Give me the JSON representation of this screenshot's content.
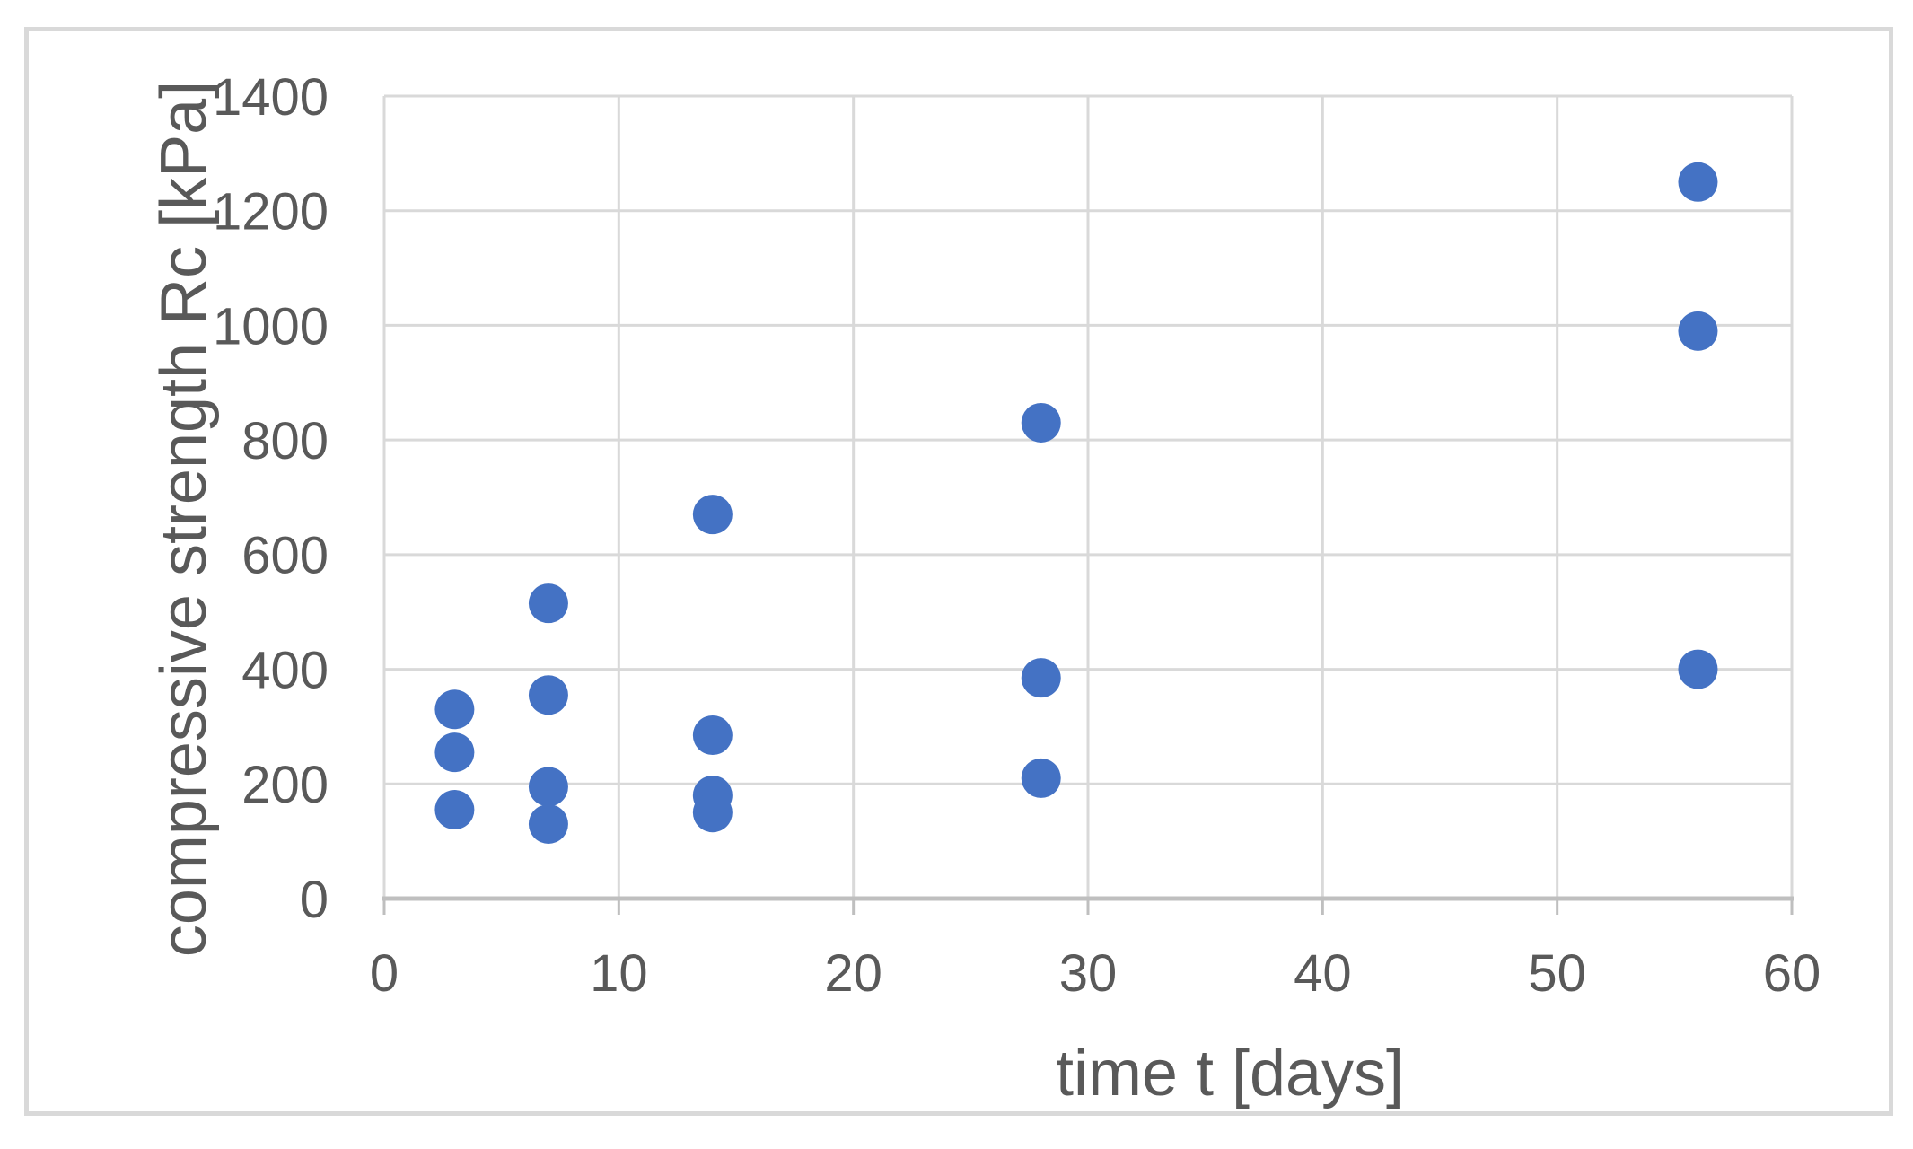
{
  "figure": {
    "background": "#FFFFFF",
    "border_color": "#D9D9D9"
  },
  "chart_data": {
    "type": "scatter",
    "title": "",
    "xlabel": "time t [days]",
    "ylabel": "compressive strength Rc [kPa]",
    "xlim": [
      0,
      60
    ],
    "ylim": [
      0,
      1400
    ],
    "xticks": [
      0,
      10,
      20,
      30,
      40,
      50,
      60
    ],
    "yticks": [
      0,
      200,
      400,
      600,
      800,
      1000,
      1200,
      1400
    ],
    "grid": true,
    "legend_position": "none",
    "colors": {
      "marker": "#4472C4",
      "gridline": "#D9D9D9",
      "axis_line": "#BFBFBF",
      "tick_label": "#595959",
      "axis_title": "#595959"
    },
    "series": [
      {
        "name": "compressive strength Rc",
        "marker": "circle",
        "points": [
          [
            3,
            330
          ],
          [
            3,
            255
          ],
          [
            3,
            155
          ],
          [
            7,
            515
          ],
          [
            7,
            355
          ],
          [
            7,
            195
          ],
          [
            7,
            130
          ],
          [
            14,
            670
          ],
          [
            14,
            285
          ],
          [
            14,
            180
          ],
          [
            14,
            150
          ],
          [
            28,
            830
          ],
          [
            28,
            385
          ],
          [
            28,
            210
          ],
          [
            56,
            1250
          ],
          [
            56,
            990
          ],
          [
            56,
            400
          ]
        ]
      }
    ]
  }
}
